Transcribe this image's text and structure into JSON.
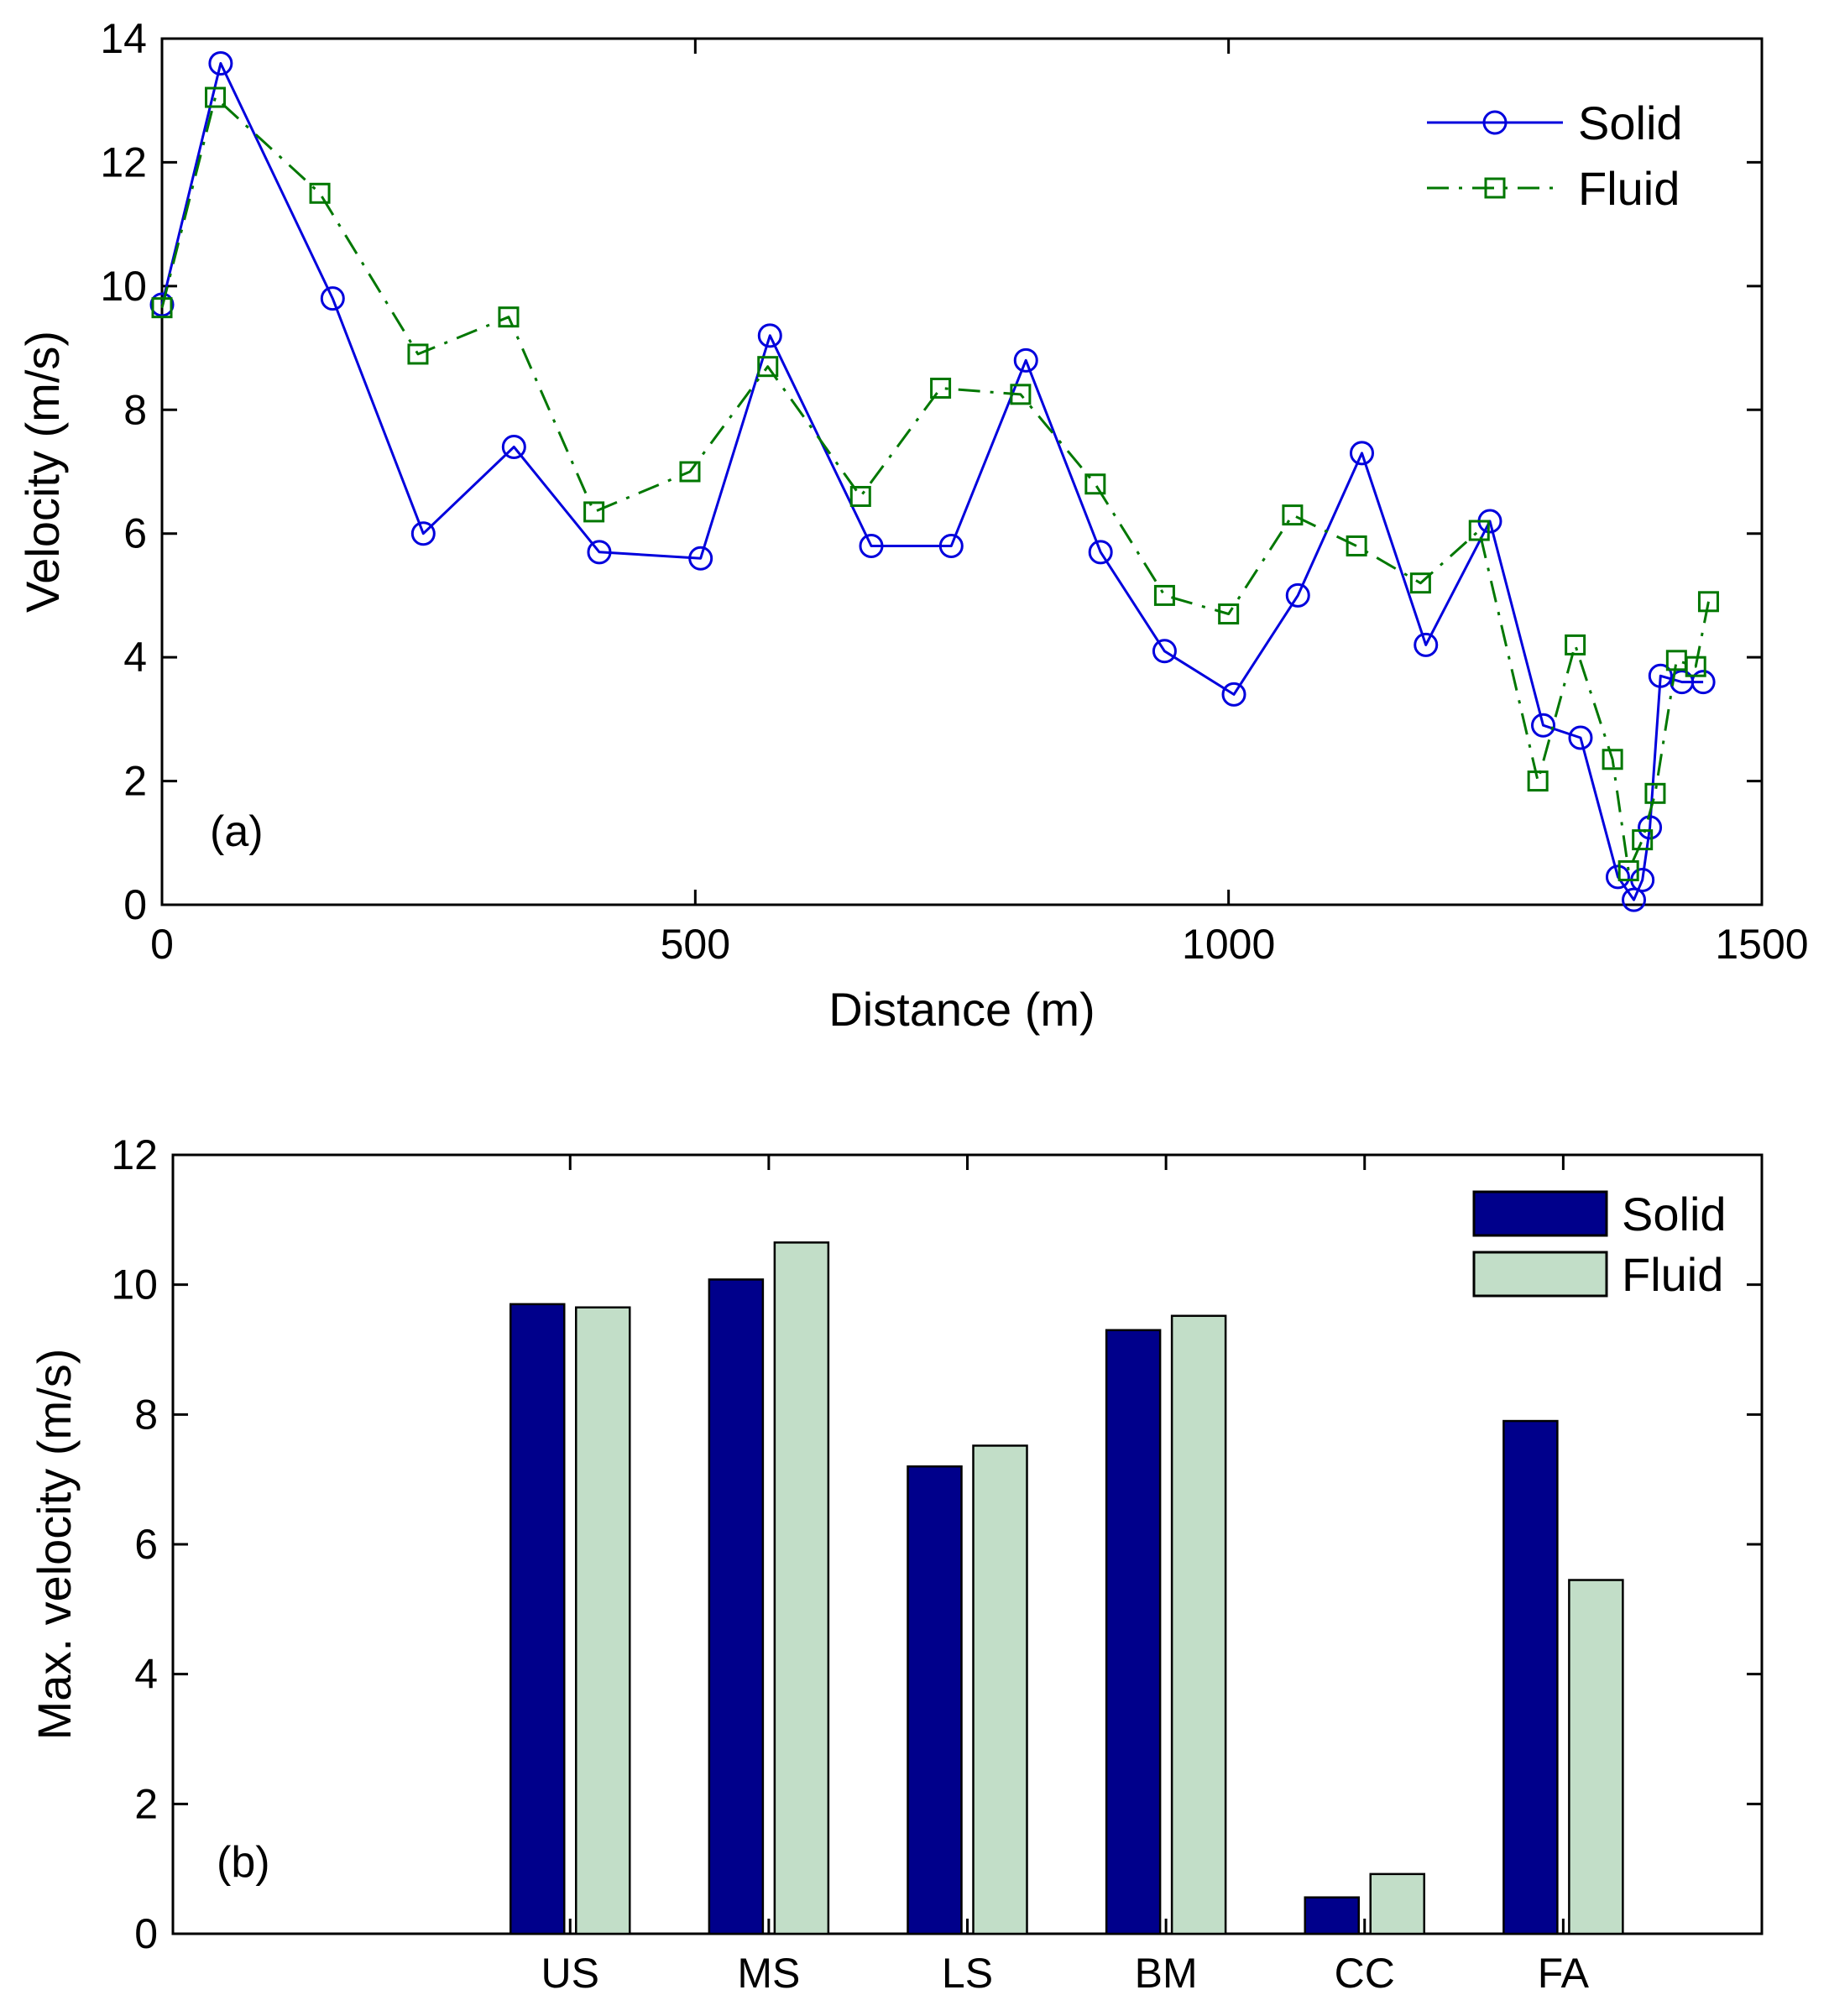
{
  "chart_data": [
    {
      "type": "line",
      "panel_label": "(a)",
      "title": "",
      "xlabel": "Distance (m)",
      "ylabel": "Velocity (m/s)",
      "xlim": [
        0,
        1500
      ],
      "ylim": [
        0,
        14
      ],
      "xticks": [
        0,
        500,
        1000,
        1500
      ],
      "yticks": [
        0,
        2,
        4,
        6,
        8,
        10,
        12,
        14
      ],
      "grid": false,
      "legend_position": "top-right",
      "series": [
        {
          "name": "Solid",
          "color": "#0000dd",
          "line_style": "solid",
          "marker": "circle",
          "x": [
            0,
            55,
            160,
            245,
            330,
            410,
            505,
            570,
            665,
            740,
            810,
            880,
            940,
            1005,
            1065,
            1125,
            1185,
            1245,
            1295,
            1330,
            1365,
            1380,
            1388,
            1395,
            1405,
            1425,
            1445
          ],
          "y": [
            9.7,
            13.6,
            9.8,
            6.0,
            7.4,
            5.7,
            5.6,
            9.2,
            5.8,
            5.8,
            8.8,
            5.7,
            4.1,
            3.4,
            5.0,
            7.3,
            4.2,
            6.2,
            2.9,
            2.7,
            0.45,
            0.08,
            0.4,
            1.25,
            3.7,
            3.6,
            3.6
          ]
        },
        {
          "name": "Fluid",
          "color": "#007700",
          "line_style": "dashdot",
          "marker": "square",
          "x": [
            0,
            50,
            148,
            240,
            325,
            405,
            495,
            568,
            655,
            730,
            805,
            875,
            940,
            1000,
            1060,
            1120,
            1180,
            1235,
            1290,
            1325,
            1360,
            1375,
            1388,
            1400,
            1420,
            1438,
            1450
          ],
          "y": [
            9.65,
            13.05,
            11.5,
            8.9,
            9.5,
            6.35,
            7.0,
            8.7,
            6.6,
            8.35,
            8.25,
            6.8,
            5.0,
            4.7,
            6.3,
            5.8,
            5.2,
            6.05,
            2.0,
            4.2,
            2.35,
            0.55,
            1.05,
            1.8,
            3.95,
            3.85,
            4.9
          ]
        }
      ]
    },
    {
      "type": "bar",
      "panel_label": "(b)",
      "title": "",
      "xlabel": "",
      "ylabel": "Max. velocity (m/s)",
      "categories": [
        "US",
        "MS",
        "LS",
        "BM",
        "CC",
        "FA"
      ],
      "ylim": [
        0,
        12
      ],
      "yticks": [
        0,
        2,
        4,
        6,
        8,
        10,
        12
      ],
      "grid": false,
      "legend_position": "top-right",
      "series": [
        {
          "name": "Solid",
          "color": "#00008b",
          "values": [
            9.7,
            10.08,
            7.2,
            9.3,
            0.56,
            7.9
          ]
        },
        {
          "name": "Fluid",
          "color": "#c2dec8",
          "values": [
            9.65,
            10.65,
            7.52,
            9.52,
            0.92,
            5.45
          ]
        }
      ]
    }
  ]
}
